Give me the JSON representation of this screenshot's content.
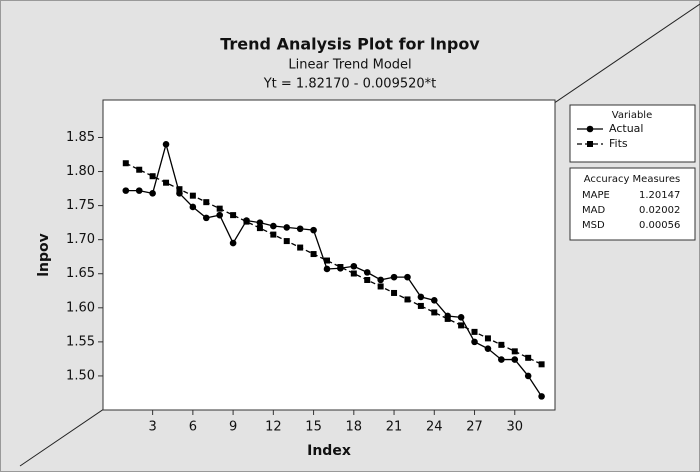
{
  "chart_data": {
    "type": "line",
    "title": "Trend Analysis Plot for lnpov",
    "subtitle": "Linear Trend Model",
    "equation": "Yt = 1.82170 - 0.009520*t",
    "x_label": "Index",
    "y_label": "lnpov",
    "x": [
      1,
      2,
      3,
      4,
      5,
      6,
      7,
      8,
      9,
      10,
      11,
      12,
      13,
      14,
      15,
      16,
      17,
      18,
      19,
      20,
      21,
      22,
      23,
      24,
      25,
      26,
      27,
      28,
      29,
      30,
      31,
      32
    ],
    "series": [
      {
        "name": "Actual",
        "color": "#000000",
        "marker": "circle",
        "dashed": false,
        "values": [
          1.772,
          1.772,
          1.768,
          1.84,
          1.768,
          1.748,
          1.732,
          1.736,
          1.695,
          1.728,
          1.725,
          1.72,
          1.718,
          1.716,
          1.714,
          1.657,
          1.658,
          1.661,
          1.652,
          1.641,
          1.645,
          1.645,
          1.616,
          1.611,
          1.588,
          1.586,
          1.55,
          1.54,
          1.524,
          1.524,
          1.5,
          1.47
        ]
      },
      {
        "name": "Fits",
        "color": "#000000",
        "marker": "square",
        "dashed": true,
        "values": [
          1.81218,
          1.80266,
          1.79314,
          1.78362,
          1.7741,
          1.76458,
          1.75506,
          1.74554,
          1.73602,
          1.7265,
          1.71698,
          1.70746,
          1.69794,
          1.68842,
          1.6789,
          1.66938,
          1.65986,
          1.65034,
          1.64082,
          1.6313,
          1.62178,
          1.61226,
          1.60274,
          1.59322,
          1.5837,
          1.57418,
          1.56466,
          1.55514,
          1.54562,
          1.5361,
          1.52658,
          1.51706
        ]
      }
    ],
    "legend_title": "Variable",
    "xlim": [
      -0.7,
      33
    ],
    "xticks": [
      3,
      6,
      9,
      12,
      15,
      18,
      21,
      24,
      27,
      30
    ],
    "ylim": [
      1.45,
      1.905
    ],
    "yticks": [
      {
        "value": 1.5,
        "label": "1.50"
      },
      1.55,
      {
        "value": 1.6,
        "label": "1.60"
      },
      1.65,
      {
        "value": 1.7,
        "label": "1.70"
      },
      1.75,
      {
        "value": 1.8,
        "label": "1.80"
      },
      1.85
    ],
    "accuracy_measures": {
      "title": "Accuracy Measures",
      "rows": [
        [
          "MAPE",
          "1.20147"
        ],
        [
          "MAD",
          "0.02002"
        ],
        [
          "MSD",
          "0.00056"
        ]
      ]
    }
  }
}
